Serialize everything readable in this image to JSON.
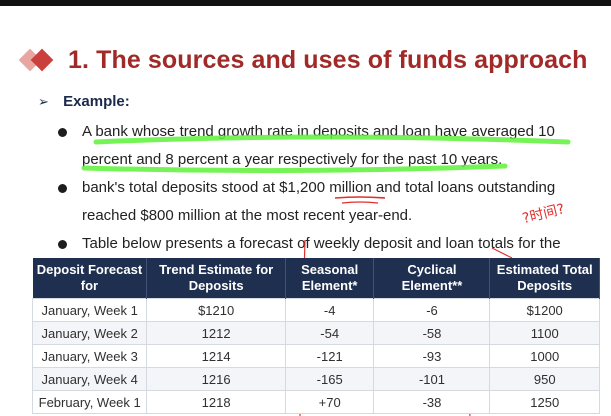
{
  "slide": {
    "title": "1. The sources and uses of funds approach",
    "example_label": "Example:",
    "example_arrow": "➢",
    "bullets": [
      "A bank whose trend growth rate in deposits and loan have averaged 10 percent and 8 percent a year respectively for the past 10 years.",
      "bank's total deposits stood at $1,200 million and total loans outstanding reached $800 million at the most recent year-end.",
      "Table below presents a forecast of weekly deposit and loan totals for the"
    ],
    "annotation_text": "?时间?"
  },
  "table": {
    "headers": [
      "Deposit Forecast for",
      "Trend Estimate for Deposits",
      "Seasonal Element*",
      "Cyclical Element**",
      "Estimated Total Deposits"
    ],
    "rows": [
      [
        "January, Week 1",
        "$1210",
        "-4",
        "-6",
        "$1200"
      ],
      [
        "January, Week 2",
        "1212",
        "-54",
        "-58",
        "1100"
      ],
      [
        "January, Week 3",
        "1214",
        "-121",
        "-93",
        "1000"
      ],
      [
        "January, Week 4",
        "1216",
        "-165",
        "-101",
        "950"
      ],
      [
        "February, Week 1",
        "1218",
        "+70",
        "-38",
        "1250"
      ]
    ]
  },
  "colors": {
    "title": "#a12a28",
    "header_bg": "#1f2f4f",
    "highlight": "#5ef23a",
    "annotation": "#e0302e"
  }
}
